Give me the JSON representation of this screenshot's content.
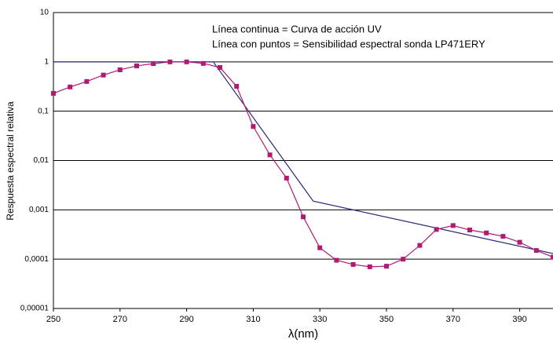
{
  "chart_data": {
    "type": "line",
    "ylabel": "Respuesta espectral relativa",
    "xlabel": "λ(nm)",
    "annotations": [
      "Línea continua = Curva de acción UV",
      "Línea con puntos = Sensibilidad espectral sonda LP471ERY"
    ],
    "yscale": "log",
    "xlim": [
      250,
      400
    ],
    "xticks": [
      250,
      270,
      290,
      310,
      330,
      350,
      370,
      390
    ],
    "ylim": [
      1e-05,
      10
    ],
    "yticks": [
      {
        "value": 1e-05,
        "label": "0,00001"
      },
      {
        "value": 0.0001,
        "label": "0,0001"
      },
      {
        "value": 0.001,
        "label": "0,001"
      },
      {
        "value": 0.01,
        "label": "0,01"
      },
      {
        "value": 0.1,
        "label": "0,1"
      },
      1,
      10
    ],
    "grid": true,
    "series": [
      {
        "color": "#2b2878",
        "markers": false,
        "x": [
          250,
          298,
          328,
          400
        ],
        "values": [
          1,
          1,
          0.0015,
          0.00013
        ]
      },
      {
        "color": "#b01a72",
        "markers": true,
        "x": [
          250,
          255,
          260,
          265,
          270,
          275,
          280,
          285,
          290,
          295,
          300,
          305,
          310,
          315,
          320,
          325,
          330,
          335,
          340,
          345,
          350,
          355,
          360,
          365,
          370,
          375,
          380,
          385,
          390,
          395,
          400
        ],
        "values": [
          0.23,
          0.31,
          0.4,
          0.54,
          0.69,
          0.83,
          0.92,
          1.0,
          1.0,
          0.93,
          0.77,
          0.32,
          0.049,
          0.013,
          0.0044,
          0.00072,
          0.00017,
          9.5e-05,
          7.8e-05,
          7e-05,
          7.2e-05,
          0.0001,
          0.00019,
          0.0004,
          0.00048,
          0.00039,
          0.00034,
          0.00029,
          0.00022,
          0.00015,
          0.00011
        ]
      }
    ]
  }
}
